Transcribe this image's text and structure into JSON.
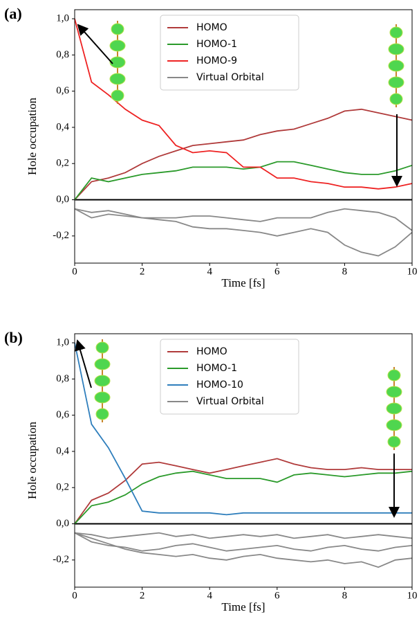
{
  "chart_data": [
    {
      "type": "line",
      "label": "(a)",
      "x_label": "Time [fs]",
      "y_label": "Hole occupation",
      "x": [
        0,
        0.5,
        1,
        1.5,
        2,
        2.5,
        3,
        3.5,
        4,
        4.5,
        5,
        5.5,
        6,
        6.5,
        7,
        7.5,
        8,
        8.5,
        9,
        9.5,
        10
      ],
      "xlim": [
        0,
        10
      ],
      "ylim": [
        -0.35,
        1.05
      ],
      "xticks": [
        0,
        2,
        4,
        6,
        8,
        10
      ],
      "yticks": [
        {
          "value": -0.2,
          "label": "-0,2"
        },
        {
          "value": 0,
          "label": "0,0"
        },
        {
          "value": 0.2,
          "label": "0,2"
        },
        {
          "value": 0.4,
          "label": "0,4"
        },
        {
          "value": 0.6,
          "label": "0,6"
        },
        {
          "value": 0.8,
          "label": "0,8"
        },
        {
          "value": 1.0,
          "label": "1,0"
        }
      ],
      "legend": "upper center",
      "series": [
        {
          "name": "HOMO",
          "color": "#b03a3a",
          "values": [
            0,
            0.1,
            0.12,
            0.15,
            0.2,
            0.24,
            0.27,
            0.3,
            0.31,
            0.32,
            0.33,
            0.36,
            0.38,
            0.39,
            0.42,
            0.45,
            0.49,
            0.5,
            0.48,
            0.46,
            0.44
          ]
        },
        {
          "name": "HOMO-1",
          "color": "#2a9a2a",
          "values": [
            0,
            0.12,
            0.1,
            0.12,
            0.14,
            0.15,
            0.16,
            0.18,
            0.18,
            0.18,
            0.17,
            0.18,
            0.21,
            0.21,
            0.19,
            0.17,
            0.15,
            0.14,
            0.14,
            0.16,
            0.19
          ]
        },
        {
          "name": "HOMO-9",
          "color": "#ee2222",
          "values": [
            1.0,
            0.65,
            0.58,
            0.5,
            0.44,
            0.41,
            0.3,
            0.26,
            0.27,
            0.26,
            0.18,
            0.18,
            0.12,
            0.12,
            0.1,
            0.09,
            0.07,
            0.07,
            0.06,
            0.07,
            0.09
          ]
        },
        {
          "name": "Virtual Orbital",
          "color": "#888888",
          "values": [
            -0.05,
            -0.07,
            -0.06,
            -0.08,
            -0.1,
            -0.1,
            -0.1,
            -0.09,
            -0.09,
            -0.1,
            -0.11,
            -0.12,
            -0.1,
            -0.1,
            -0.1,
            -0.07,
            -0.05,
            -0.06,
            -0.07,
            -0.1,
            -0.17
          ]
        },
        {
          "name": "Virtual Orbital",
          "color": "#888888",
          "values": [
            -0.05,
            -0.1,
            -0.08,
            -0.09,
            -0.1,
            -0.11,
            -0.12,
            -0.15,
            -0.16,
            -0.16,
            -0.17,
            -0.18,
            -0.2,
            -0.18,
            -0.16,
            -0.18,
            -0.25,
            -0.29,
            -0.31,
            -0.26,
            -0.18
          ]
        }
      ]
    },
    {
      "type": "line",
      "label": "(b)",
      "x_label": "Time [fs]",
      "y_label": "Hole occupation",
      "x": [
        0,
        0.5,
        1,
        1.5,
        2,
        2.5,
        3,
        3.5,
        4,
        4.5,
        5,
        5.5,
        6,
        6.5,
        7,
        7.5,
        8,
        8.5,
        9,
        9.5,
        10
      ],
      "xlim": [
        0,
        10
      ],
      "ylim": [
        -0.35,
        1.05
      ],
      "xticks": [
        0,
        2,
        4,
        6,
        8,
        10
      ],
      "yticks": [
        {
          "value": -0.2,
          "label": "-0,2"
        },
        {
          "value": 0,
          "label": "0,0"
        },
        {
          "value": 0.2,
          "label": "0,2"
        },
        {
          "value": 0.4,
          "label": "0,4"
        },
        {
          "value": 0.6,
          "label": "0,6"
        },
        {
          "value": 0.8,
          "label": "0,8"
        },
        {
          "value": 1.0,
          "label": "1,0"
        }
      ],
      "legend": "upper center",
      "series": [
        {
          "name": "HOMO",
          "color": "#b03a3a",
          "values": [
            0,
            0.13,
            0.17,
            0.24,
            0.33,
            0.34,
            0.32,
            0.3,
            0.28,
            0.3,
            0.32,
            0.34,
            0.36,
            0.33,
            0.31,
            0.3,
            0.3,
            0.31,
            0.3,
            0.3,
            0.3
          ]
        },
        {
          "name": "HOMO-1",
          "color": "#2a9a2a",
          "values": [
            0,
            0.1,
            0.12,
            0.16,
            0.22,
            0.26,
            0.28,
            0.29,
            0.27,
            0.25,
            0.25,
            0.25,
            0.23,
            0.27,
            0.28,
            0.27,
            0.26,
            0.27,
            0.28,
            0.28,
            0.29
          ]
        },
        {
          "name": "HOMO-10",
          "color": "#2e7ebc",
          "values": [
            1.0,
            0.55,
            0.42,
            0.25,
            0.07,
            0.06,
            0.06,
            0.06,
            0.06,
            0.05,
            0.06,
            0.06,
            0.06,
            0.06,
            0.06,
            0.06,
            0.06,
            0.06,
            0.06,
            0.06,
            0.06
          ]
        },
        {
          "name": "Virtual Orbital",
          "color": "#888888",
          "values": [
            -0.05,
            -0.06,
            -0.08,
            -0.07,
            -0.06,
            -0.05,
            -0.07,
            -0.06,
            -0.08,
            -0.07,
            -0.06,
            -0.07,
            -0.06,
            -0.08,
            -0.07,
            -0.06,
            -0.08,
            -0.07,
            -0.06,
            -0.07,
            -0.08
          ]
        },
        {
          "name": "Virtual Orbital",
          "color": "#888888",
          "values": [
            -0.05,
            -0.1,
            -0.12,
            -0.13,
            -0.15,
            -0.14,
            -0.12,
            -0.11,
            -0.13,
            -0.15,
            -0.14,
            -0.13,
            -0.12,
            -0.14,
            -0.15,
            -0.13,
            -0.12,
            -0.14,
            -0.15,
            -0.13,
            -0.12
          ]
        },
        {
          "name": "Virtual Orbital",
          "color": "#888888",
          "values": [
            -0.05,
            -0.08,
            -0.11,
            -0.14,
            -0.16,
            -0.17,
            -0.18,
            -0.17,
            -0.19,
            -0.2,
            -0.18,
            -0.17,
            -0.19,
            -0.2,
            -0.21,
            -0.2,
            -0.22,
            -0.21,
            -0.24,
            -0.2,
            -0.19
          ]
        }
      ]
    }
  ]
}
